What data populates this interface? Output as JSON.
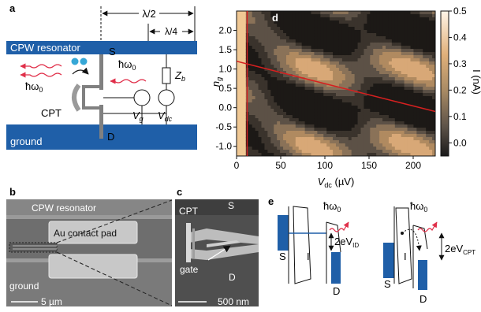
{
  "panels": {
    "a": {
      "label": "a",
      "cpw_label": "CPW resonator",
      "ground_label": "ground",
      "S": "S",
      "D": "D",
      "cpt": "CPT",
      "lambda_half": "λ/2",
      "lambda_quarter": "λ/4",
      "hw0_left": "ħω",
      "hw0_right": "ħω",
      "sub0": "0",
      "zb": "Z",
      "zb_sub": "b",
      "vg": "V",
      "vg_sub": "g",
      "vdc": "V",
      "vdc_sub": "dc",
      "colors": {
        "cpw": "#1f5fa8",
        "photon": "#e0304a",
        "pair": "#36a7d6"
      }
    },
    "b": {
      "label": "b",
      "cpw_label": "CPW resonator",
      "pad_label": "Au contact pad",
      "ground_label": "ground",
      "scale": "5 µm"
    },
    "c": {
      "label": "c",
      "cpt": "CPT",
      "S": "S",
      "D": "D",
      "gate": "gate",
      "scale": "500 nm"
    },
    "d": {
      "label": "d",
      "ylabel": "n",
      "ylabel_sub": "g",
      "xlabel": "V",
      "xlabel_sub": "dc",
      "xlabel_unit": " (µV)",
      "cbar_label": "I (nA)"
    },
    "e": {
      "label": "e",
      "hw0": "ħω",
      "sub0": "0",
      "S1": "S",
      "I1": "I",
      "D1": "D",
      "S2": "S",
      "I2": "I",
      "D2": "D",
      "ev_id": "2eV",
      "ev_id_sub": "ID",
      "ev_cpt": "2eV",
      "ev_cpt_sub": "CPT"
    }
  },
  "chart_data": {
    "type": "heatmap",
    "xlabel": "Vdc (µV)",
    "ylabel": "ng",
    "colorbar_label": "I (nA)",
    "xlim": [
      0,
      225
    ],
    "ylim": [
      -1.25,
      2.5
    ],
    "x_ticks": [
      "0",
      "50",
      "100",
      "150",
      "200"
    ],
    "y_ticks": [
      "2.0",
      "1.5",
      "1.0",
      "0.5",
      "0.0",
      "-0.5",
      "-1.0"
    ],
    "colorbar_ticks": [
      "0.5",
      "0.4",
      "0.3",
      "0.2",
      "0.1",
      "0.0"
    ],
    "colorbar_range": [
      -0.05,
      0.5
    ],
    "overlay_lines": [
      {
        "type": "vertical",
        "x": 12,
        "color": "#d62020"
      },
      {
        "type": "sloped",
        "points": [
          [
            0,
            1.2
          ],
          [
            225,
            -0.1
          ]
        ],
        "color": "#d62020"
      }
    ]
  }
}
